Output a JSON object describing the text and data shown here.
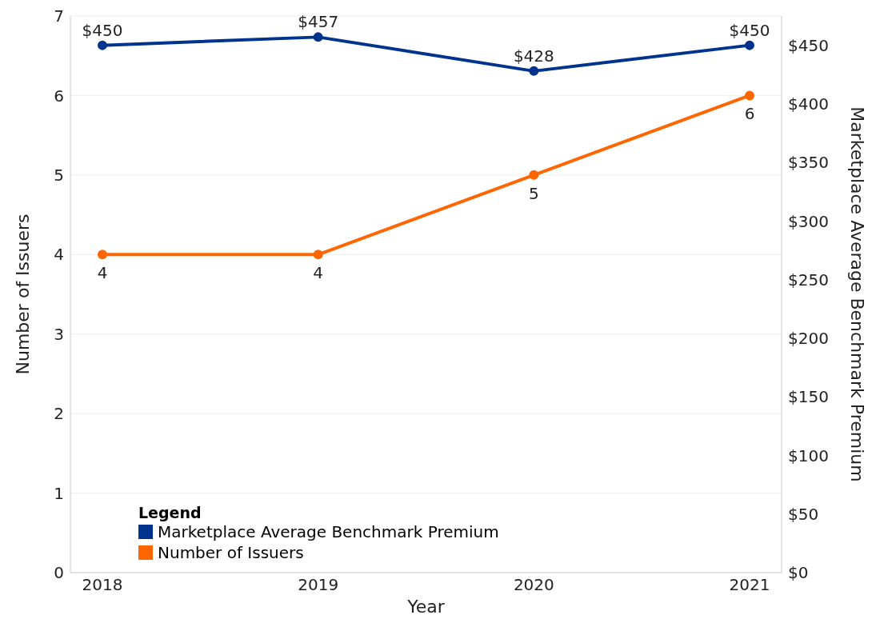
{
  "chart_data": {
    "type": "line",
    "xlabel": "Year",
    "ylabel": "Number of Issuers",
    "y2label": "Marketplace Average Benchmark Premium",
    "legend_title": "Legend",
    "categories": [
      "2018",
      "2019",
      "2020",
      "2021"
    ],
    "series": [
      {
        "name": "Marketplace Average Benchmark Premium",
        "color": "#00338d",
        "axis": "y2",
        "values": [
          450,
          457,
          428,
          450
        ],
        "value_labels": [
          "$450",
          "$457",
          "$428",
          "$450"
        ]
      },
      {
        "name": "Number of Issuers",
        "color": "#ff6600",
        "values": [
          4,
          4,
          5,
          6
        ],
        "value_labels": [
          "4",
          "4",
          "5",
          "6"
        ]
      }
    ],
    "ylim": [
      0,
      7
    ],
    "yticks": [
      0,
      1,
      2,
      3,
      4,
      5,
      6,
      7
    ],
    "y2lim": [
      0,
      475
    ],
    "y2ticks": [
      {
        "value": 0,
        "label": "$0"
      },
      {
        "value": 50,
        "label": "$50"
      },
      {
        "value": 100,
        "label": "$100"
      },
      {
        "value": 150,
        "label": "$150"
      },
      {
        "value": 200,
        "label": "$200"
      },
      {
        "value": 250,
        "label": "$250"
      },
      {
        "value": 300,
        "label": "$300"
      },
      {
        "value": 350,
        "label": "$350"
      },
      {
        "value": 400,
        "label": "$400"
      },
      {
        "value": 450,
        "label": "$450"
      }
    ],
    "grid": "y",
    "legend": "bottom left",
    "marker": "circle",
    "line_style": "solid"
  }
}
